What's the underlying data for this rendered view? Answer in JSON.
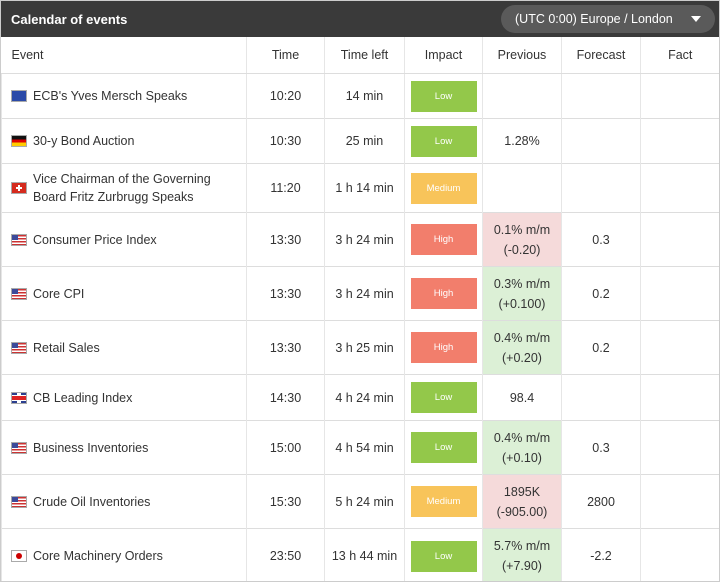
{
  "header": {
    "title": "Calendar of events",
    "timezone": "(UTC 0:00) Europe / London"
  },
  "columns": [
    "Event",
    "Time",
    "Time left",
    "Impact",
    "Previous",
    "Forecast",
    "Fact"
  ],
  "rows": [
    {
      "event": "ECB's Yves Mersch Speaks",
      "time": "10:20",
      "time_left": "14 min",
      "impact": "Low"
    },
    {
      "event": "30-y Bond Auction",
      "time": "10:30",
      "time_left": "25 min",
      "impact": "Low",
      "previous": [
        "1.28%"
      ]
    },
    {
      "event": "Vice Chairman of the Governing Board Fritz Zurbrugg Speaks",
      "time": "11:20",
      "time_left": "1 h 14 min",
      "impact": "Medium"
    },
    {
      "event": "Consumer Price Index",
      "time": "13:30",
      "time_left": "3 h 24 min",
      "impact": "High",
      "previous": [
        "0.1% m/m",
        "(-0.20)"
      ],
      "previous_color": "#f5dada",
      "forecast": "0.3"
    },
    {
      "event": "Core CPI",
      "time": "13:30",
      "time_left": "3 h 24 min",
      "impact": "High",
      "previous": [
        "0.3% m/m",
        "(+0.100)"
      ],
      "previous_color": "#dcf0d6",
      "forecast": "0.2"
    },
    {
      "event": "Retail Sales",
      "time": "13:30",
      "time_left": "3 h 25 min",
      "impact": "High",
      "previous": [
        "0.4% m/m",
        "(+0.20)"
      ],
      "previous_color": "#dcf0d6",
      "forecast": "0.2"
    },
    {
      "event": "CB Leading Index",
      "time": "14:30",
      "time_left": "4 h 24 min",
      "impact": "Low",
      "previous": [
        "98.4"
      ]
    },
    {
      "event": "Business Inventories",
      "time": "15:00",
      "time_left": "4 h 54 min",
      "impact": "Low",
      "previous": [
        "0.4% m/m",
        "(+0.10)"
      ],
      "previous_color": "#dcf0d6",
      "forecast": "0.3"
    },
    {
      "event": "Crude Oil Inventories",
      "time": "15:30",
      "time_left": "5 h 24 min",
      "impact": "Medium",
      "previous": [
        "1895K",
        "(-905.00)"
      ],
      "previous_color": "#f5dada",
      "forecast": "2800"
    },
    {
      "event": "Core Machinery Orders",
      "time": "23:50",
      "time_left": "13 h 44 min",
      "impact": "Low",
      "previous": [
        "5.7% m/m",
        "(+7.90)"
      ],
      "previous_color": "#dcf0d6",
      "forecast": "-2.2"
    }
  ]
}
